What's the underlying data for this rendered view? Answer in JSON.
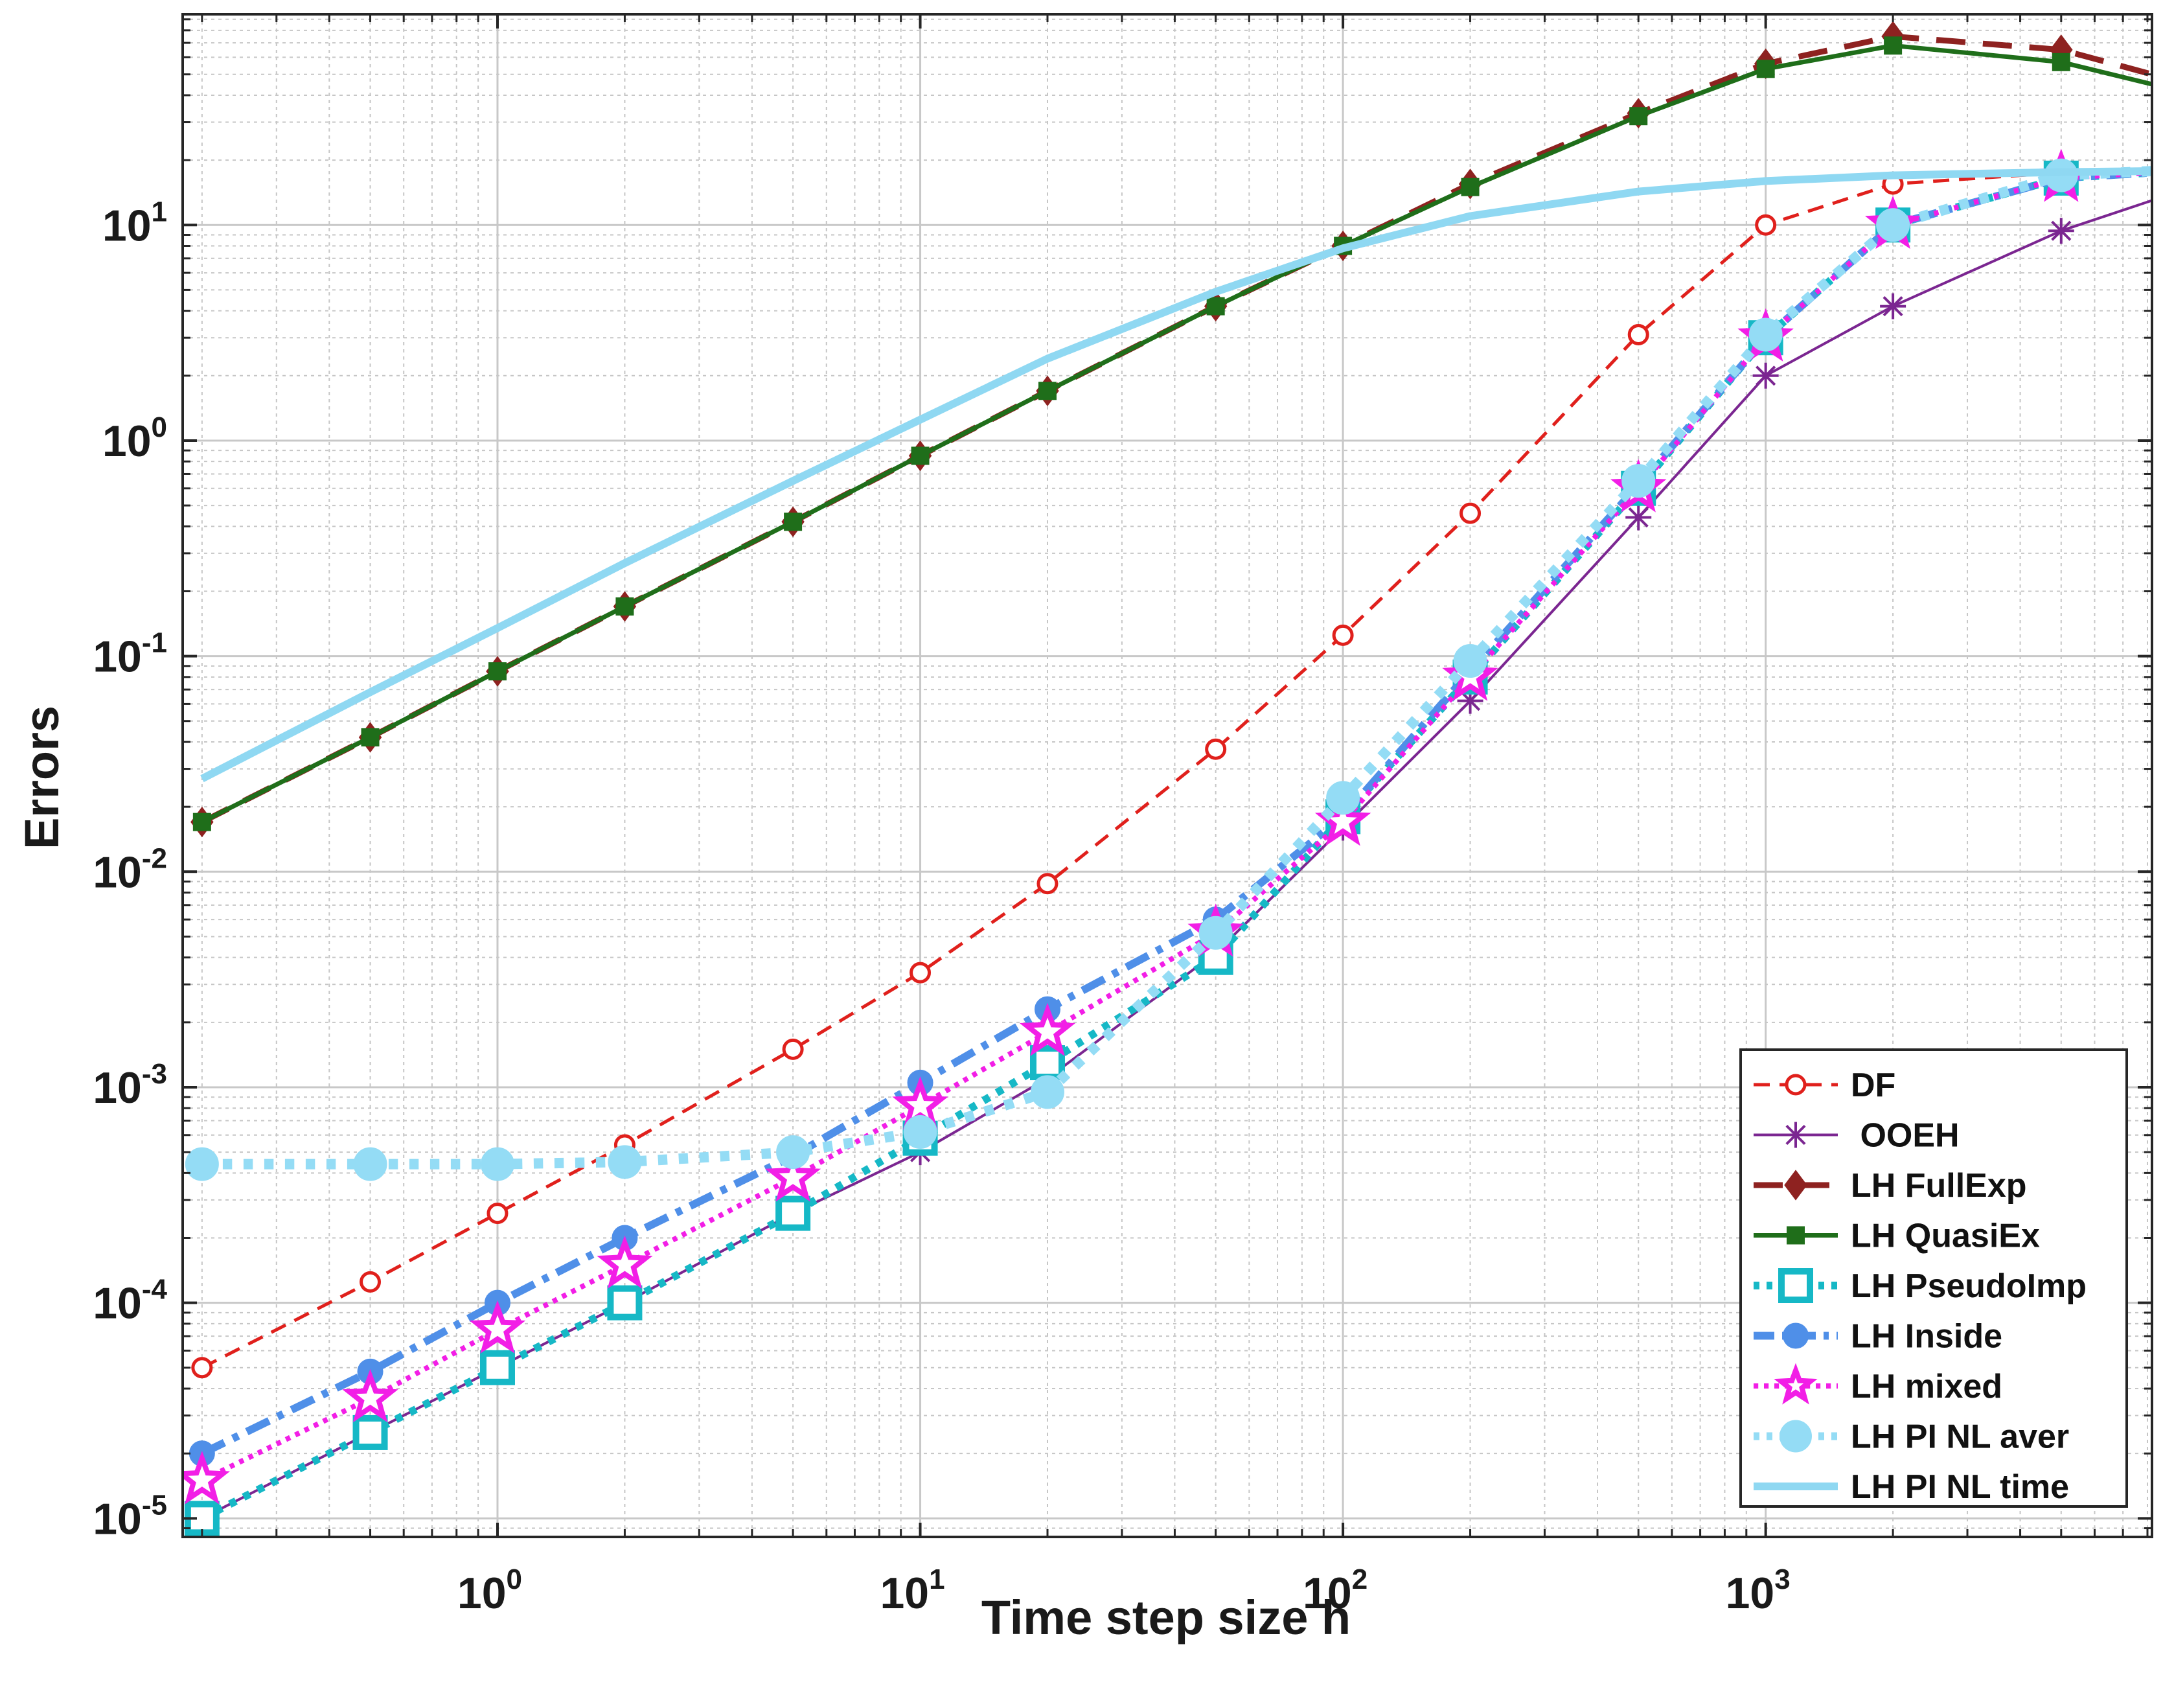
{
  "chart_data": {
    "type": "line",
    "title": "",
    "xlabel": "Time step size h",
    "ylabel": "Errors",
    "xscale": "log",
    "yscale": "log",
    "xlim": [
      0.18,
      8200
    ],
    "ylim": [
      8.2e-06,
      95
    ],
    "grid": true,
    "legend_position": "bottom-right",
    "x_ticks": [
      {
        "base": "10",
        "exp": "0",
        "value": 1
      },
      {
        "base": "10",
        "exp": "1",
        "value": 10
      },
      {
        "base": "10",
        "exp": "2",
        "value": 100
      },
      {
        "base": "10",
        "exp": "3",
        "value": 1000
      }
    ],
    "y_ticks": [
      {
        "base": "10",
        "exp": "-5",
        "value": 1e-05
      },
      {
        "base": "10",
        "exp": "-4",
        "value": 0.0001
      },
      {
        "base": "10",
        "exp": "-3",
        "value": 0.001
      },
      {
        "base": "10",
        "exp": "-2",
        "value": 0.01
      },
      {
        "base": "10",
        "exp": "-1",
        "value": 0.1
      },
      {
        "base": "10",
        "exp": "0",
        "value": 1
      },
      {
        "base": "10",
        "exp": "1",
        "value": 10
      }
    ],
    "series": [
      {
        "name": "DF",
        "color": "#e0201c",
        "dash": "dashed",
        "width": 5,
        "marker": "circle-open",
        "markerSize": 14,
        "x": [
          0.2,
          0.5,
          1,
          2,
          5,
          10,
          20,
          50,
          100,
          200,
          500,
          1000,
          2000,
          5000,
          8200
        ],
        "y": [
          5e-05,
          0.000125,
          0.00026,
          0.00054,
          0.0015,
          0.0034,
          0.0088,
          0.037,
          0.125,
          0.46,
          3.1,
          10,
          15.5,
          17.5,
          17.8
        ]
      },
      {
        "name": " OOEH",
        "color": "#7b2691",
        "dash": "solid",
        "width": 4,
        "marker": "asterisk",
        "markerSize": 20,
        "x": [
          0.2,
          0.5,
          1,
          2,
          5,
          10,
          20,
          50,
          100,
          200,
          500,
          1000,
          2000,
          5000,
          8200
        ],
        "y": [
          1e-05,
          2.5e-05,
          5e-05,
          0.0001,
          0.00026,
          0.0005,
          0.0011,
          0.0042,
          0.016,
          0.062,
          0.44,
          2.0,
          4.2,
          9.4,
          13
        ]
      },
      {
        "name": "LH FullExp",
        "color": "#8e2220",
        "dash": "dashed",
        "width": 9,
        "marker": "diamond",
        "markerSize": 22,
        "x": [
          0.2,
          0.5,
          1,
          2,
          5,
          10,
          20,
          50,
          100,
          200,
          500,
          1000,
          2000,
          5000,
          8200
        ],
        "y": [
          0.017,
          0.042,
          0.085,
          0.17,
          0.42,
          0.85,
          1.7,
          4.2,
          8.0,
          15.5,
          33,
          56,
          75,
          65,
          50
        ]
      },
      {
        "name": "LH QuasiEx",
        "color": "#1f6e1a",
        "dash": "solid",
        "width": 7,
        "marker": "square-filled",
        "markerSize": 13,
        "x": [
          0.2,
          0.5,
          1,
          2,
          5,
          10,
          20,
          50,
          100,
          200,
          500,
          1000,
          2000,
          5000,
          8200
        ],
        "y": [
          0.017,
          0.042,
          0.085,
          0.17,
          0.42,
          0.85,
          1.7,
          4.2,
          8.0,
          15.0,
          32,
          53,
          68,
          57,
          45
        ]
      },
      {
        "name": "LH PseudoImp",
        "color": "#16b8c6",
        "dash": "dotted",
        "width": 12,
        "marker": "square-open",
        "markerSize": 22,
        "x": [
          0.2,
          0.5,
          1,
          2,
          5,
          10,
          20,
          50,
          100,
          200,
          500,
          1000,
          2000,
          5000,
          8200
        ],
        "y": [
          1e-05,
          2.5e-05,
          5e-05,
          0.0001,
          0.00026,
          0.00058,
          0.0013,
          0.004,
          0.018,
          0.08,
          0.6,
          3.0,
          10,
          16.5,
          17.5
        ]
      },
      {
        "name": "LH Inside",
        "color": "#4f8fe8",
        "dash": "dashdot",
        "width": 12,
        "marker": "circle-filled",
        "markerSize": 19,
        "x": [
          0.2,
          0.5,
          1,
          2,
          5,
          10,
          20,
          50,
          100,
          200,
          500,
          1000,
          2000,
          5000,
          8200
        ],
        "y": [
          2e-05,
          4.8e-05,
          0.0001,
          0.0002,
          0.00048,
          0.00105,
          0.0023,
          0.006,
          0.018,
          0.085,
          0.62,
          3.0,
          10,
          16.5,
          17.5
        ]
      },
      {
        "name": "LH mixed",
        "color": "#f21ee6",
        "dash": "dotted",
        "width": 8,
        "marker": "star",
        "markerSize": 34,
        "x": [
          0.2,
          0.5,
          1,
          2,
          5,
          10,
          20,
          50,
          100,
          200,
          500,
          1000,
          2000,
          5000,
          8200
        ],
        "y": [
          1.5e-05,
          3.6e-05,
          7.5e-05,
          0.00015,
          0.00038,
          0.00082,
          0.0018,
          0.0052,
          0.017,
          0.08,
          0.6,
          3.0,
          10,
          16.5,
          17.5
        ]
      },
      {
        "name": "LH PI NL aver",
        "color": "#94dcf5",
        "dash": "dotted",
        "width": 16,
        "marker": "circle-filled",
        "markerSize": 25,
        "x": [
          0.2,
          0.5,
          1,
          2,
          5,
          10,
          20,
          50,
          100,
          200,
          500,
          1000,
          2000,
          5000,
          8200
        ],
        "y": [
          0.00044,
          0.00044,
          0.00044,
          0.00045,
          0.0005,
          0.00062,
          0.00095,
          0.0052,
          0.022,
          0.095,
          0.65,
          3.1,
          10,
          17,
          17.8
        ]
      },
      {
        "name": "LH PI NL time",
        "color": "#8fd8f2",
        "dash": "solid",
        "width": 12,
        "marker": "none",
        "markerSize": 0,
        "x": [
          0.2,
          0.5,
          1,
          2,
          5,
          10,
          20,
          50,
          100,
          200,
          500,
          1000,
          2000,
          5000,
          8200
        ],
        "y": [
          0.027,
          0.068,
          0.135,
          0.27,
          0.65,
          1.25,
          2.4,
          4.9,
          7.8,
          11,
          14.3,
          16,
          17,
          17.6,
          17.8
        ]
      }
    ]
  }
}
